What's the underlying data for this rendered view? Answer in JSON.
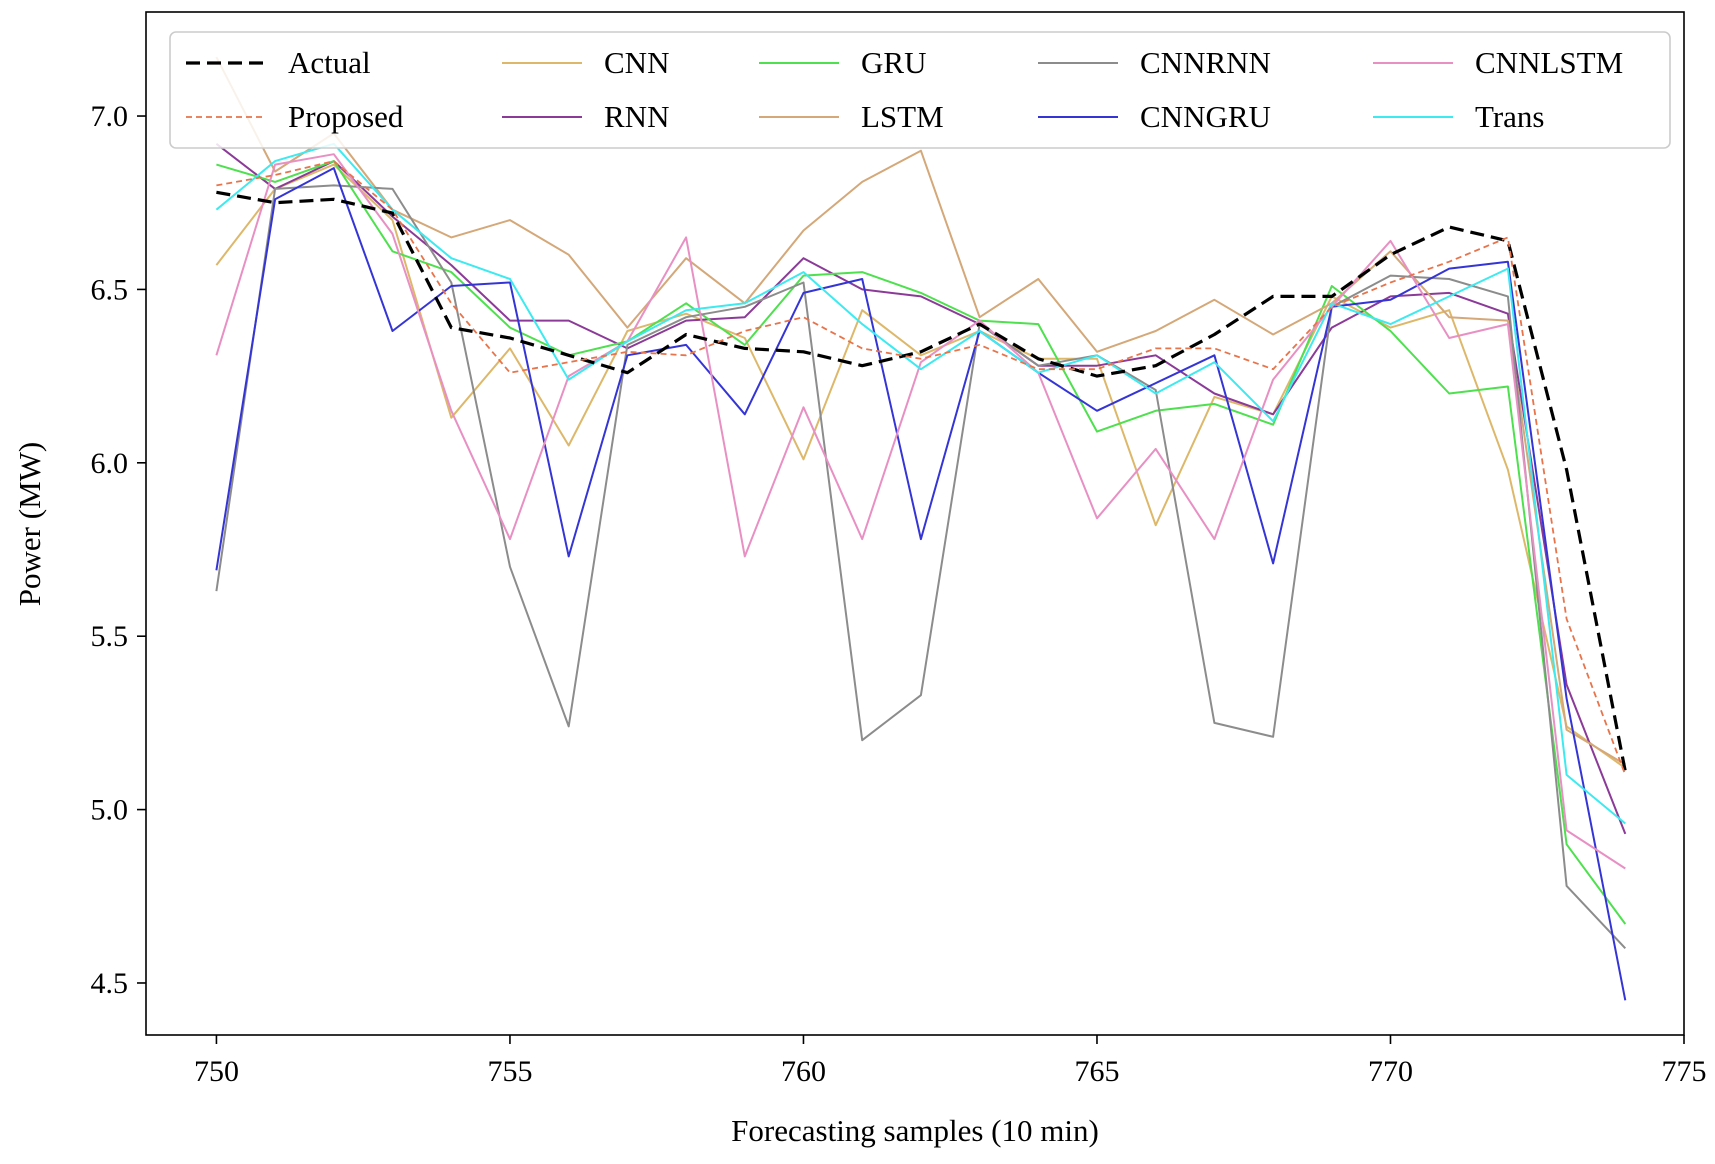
{
  "chart_data": {
    "type": "line",
    "title": "",
    "xlabel": "Forecasting samples (10 min)",
    "ylabel": "Power (MW)",
    "xlim": [
      748.8,
      775.0
    ],
    "ylim": [
      4.35,
      7.3
    ],
    "xticks": [
      750,
      755,
      760,
      765,
      770,
      775
    ],
    "yticks": [
      4.5,
      5.0,
      5.5,
      6.0,
      6.5,
      7.0
    ],
    "xtick_labels": [
      "750",
      "755",
      "760",
      "765",
      "770",
      "775"
    ],
    "ytick_labels": [
      "4.5",
      "5.0",
      "5.5",
      "6.0",
      "6.5",
      "7.0"
    ],
    "grid": false,
    "legend_position": "top",
    "x": [
      750,
      751,
      752,
      753,
      754,
      755,
      756,
      757,
      758,
      759,
      760,
      761,
      762,
      763,
      764,
      765,
      766,
      767,
      768,
      769,
      770,
      771,
      772,
      773,
      774
    ],
    "series": [
      {
        "name": "Actual",
        "color": "#000000",
        "dash": "dashed",
        "width": 3.2,
        "values": [
          6.78,
          6.75,
          6.76,
          6.72,
          6.39,
          6.36,
          6.31,
          6.26,
          6.37,
          6.33,
          6.32,
          6.28,
          6.32,
          6.4,
          6.3,
          6.25,
          6.28,
          6.37,
          6.48,
          6.48,
          6.6,
          6.68,
          6.64,
          5.98,
          5.11
        ]
      },
      {
        "name": "Proposed",
        "color": "#e8744b",
        "dash": "dotted",
        "width": 1.8,
        "values": [
          6.8,
          6.83,
          6.87,
          6.73,
          6.46,
          6.26,
          6.29,
          6.32,
          6.31,
          6.38,
          6.42,
          6.33,
          6.3,
          6.34,
          6.27,
          6.27,
          6.33,
          6.33,
          6.27,
          6.45,
          6.52,
          6.58,
          6.65,
          5.55,
          5.1
        ]
      },
      {
        "name": "CNN",
        "color": "#ddb86a",
        "dash": "solid",
        "width": 2,
        "values": [
          6.57,
          6.79,
          6.86,
          6.7,
          6.13,
          6.33,
          6.05,
          6.38,
          6.43,
          6.36,
          6.01,
          6.44,
          6.31,
          6.38,
          6.3,
          6.3,
          5.82,
          6.19,
          6.14,
          6.48,
          6.39,
          6.44,
          5.98,
          5.24,
          5.12
        ]
      },
      {
        "name": "RNN",
        "color": "#8b3a98",
        "dash": "solid",
        "width": 2,
        "values": [
          6.92,
          6.79,
          6.87,
          6.71,
          6.57,
          6.41,
          6.41,
          6.33,
          6.41,
          6.42,
          6.59,
          6.5,
          6.48,
          6.4,
          6.28,
          6.28,
          6.31,
          6.2,
          6.14,
          6.39,
          6.48,
          6.49,
          6.43,
          5.36,
          4.93
        ]
      },
      {
        "name": "GRU",
        "color": "#4ee04e",
        "dash": "solid",
        "width": 2,
        "values": [
          6.86,
          6.81,
          6.87,
          6.61,
          6.55,
          6.39,
          6.31,
          6.35,
          6.46,
          6.34,
          6.54,
          6.55,
          6.49,
          6.41,
          6.4,
          6.09,
          6.15,
          6.17,
          6.11,
          6.51,
          6.38,
          6.2,
          6.22,
          4.9,
          4.67
        ]
      },
      {
        "name": "LSTM",
        "color": "#d4a878",
        "dash": "solid",
        "width": 2,
        "values": [
          7.17,
          6.84,
          6.95,
          6.73,
          6.65,
          6.7,
          6.6,
          6.39,
          6.59,
          6.46,
          6.67,
          6.81,
          6.9,
          6.42,
          6.53,
          6.32,
          6.38,
          6.47,
          6.37,
          6.46,
          6.61,
          6.42,
          6.41,
          5.23,
          5.13
        ]
      },
      {
        "name": "CNNRNN",
        "color": "#8c8c8c",
        "dash": "solid",
        "width": 2,
        "values": [
          5.63,
          6.79,
          6.8,
          6.79,
          6.52,
          5.7,
          5.24,
          6.34,
          6.42,
          6.45,
          6.52,
          5.2,
          5.33,
          6.4,
          6.28,
          6.31,
          6.21,
          5.25,
          5.21,
          6.45,
          6.54,
          6.53,
          6.48,
          4.78,
          4.6
        ]
      },
      {
        "name": "CNNGRU",
        "color": "#3535d6",
        "dash": "solid",
        "width": 2,
        "values": [
          5.69,
          6.76,
          6.85,
          6.38,
          6.51,
          6.52,
          5.73,
          6.31,
          6.34,
          6.14,
          6.49,
          6.53,
          5.78,
          6.38,
          6.26,
          6.15,
          6.23,
          6.31,
          5.71,
          6.45,
          6.47,
          6.56,
          6.58,
          5.32,
          4.45
        ]
      },
      {
        "name": "CNNLSTM",
        "color": "#e890c4",
        "dash": "solid",
        "width": 2,
        "values": [
          6.31,
          6.86,
          6.89,
          6.66,
          6.15,
          5.78,
          6.25,
          6.35,
          6.65,
          5.73,
          6.16,
          5.78,
          6.29,
          6.41,
          6.26,
          5.84,
          6.04,
          5.78,
          6.24,
          6.45,
          6.64,
          6.36,
          6.4,
          4.94,
          4.83
        ]
      },
      {
        "name": "Trans",
        "color": "#3ceaf0",
        "dash": "solid",
        "width": 2,
        "values": [
          6.73,
          6.87,
          6.92,
          6.73,
          6.59,
          6.53,
          6.24,
          6.35,
          6.44,
          6.46,
          6.55,
          6.4,
          6.27,
          6.38,
          6.26,
          6.31,
          6.2,
          6.29,
          6.12,
          6.46,
          6.4,
          6.48,
          6.56,
          5.1,
          4.96
        ]
      }
    ]
  }
}
